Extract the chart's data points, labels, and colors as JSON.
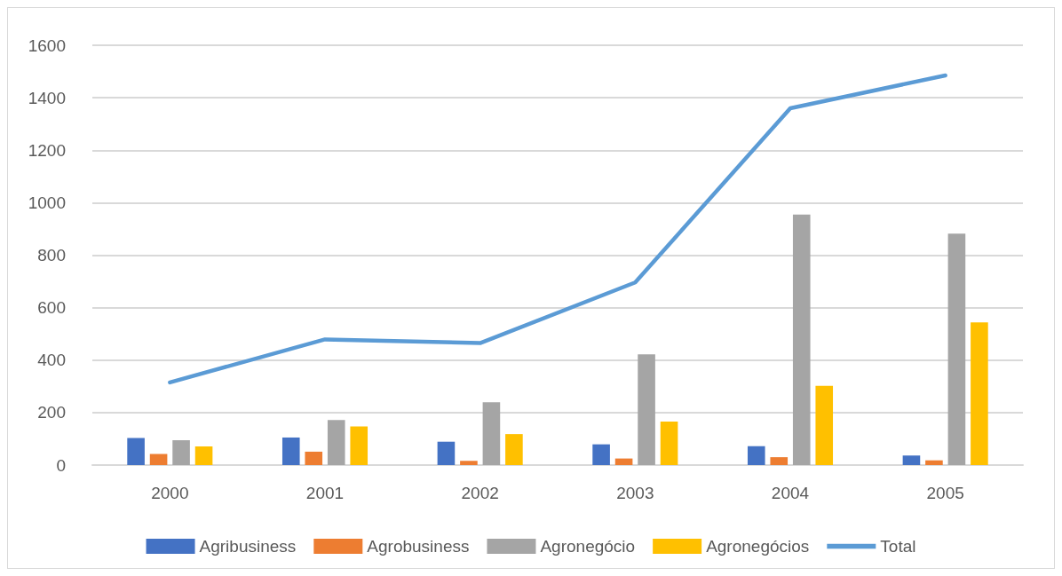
{
  "chart_data": {
    "type": "bar",
    "categories": [
      "2000",
      "2001",
      "2002",
      "2003",
      "2004",
      "2005"
    ],
    "series": [
      {
        "name": "Agribusiness",
        "color": "#4472c4",
        "values": [
          103,
          105,
          89,
          79,
          72,
          36
        ]
      },
      {
        "name": "Agrobusiness",
        "color": "#ed7d31",
        "values": [
          42,
          51,
          16,
          25,
          30,
          18
        ]
      },
      {
        "name": "Agronegócio",
        "color": "#a5a5a5",
        "values": [
          95,
          172,
          239,
          422,
          955,
          882
        ]
      },
      {
        "name": "Agronegócios",
        "color": "#ffc000",
        "values": [
          71,
          147,
          118,
          166,
          302,
          544
        ]
      },
      {
        "name": "Total",
        "type": "line",
        "color": "#5b9bd5",
        "values": [
          315,
          479,
          465,
          696,
          1360,
          1485
        ]
      }
    ],
    "ylim": [
      0,
      1600
    ],
    "yticks": [
      0,
      200,
      400,
      600,
      800,
      1000,
      1200,
      1400,
      1600
    ],
    "grid": "y",
    "legend": "bottom",
    "marker": "none",
    "line_style": "solid"
  }
}
